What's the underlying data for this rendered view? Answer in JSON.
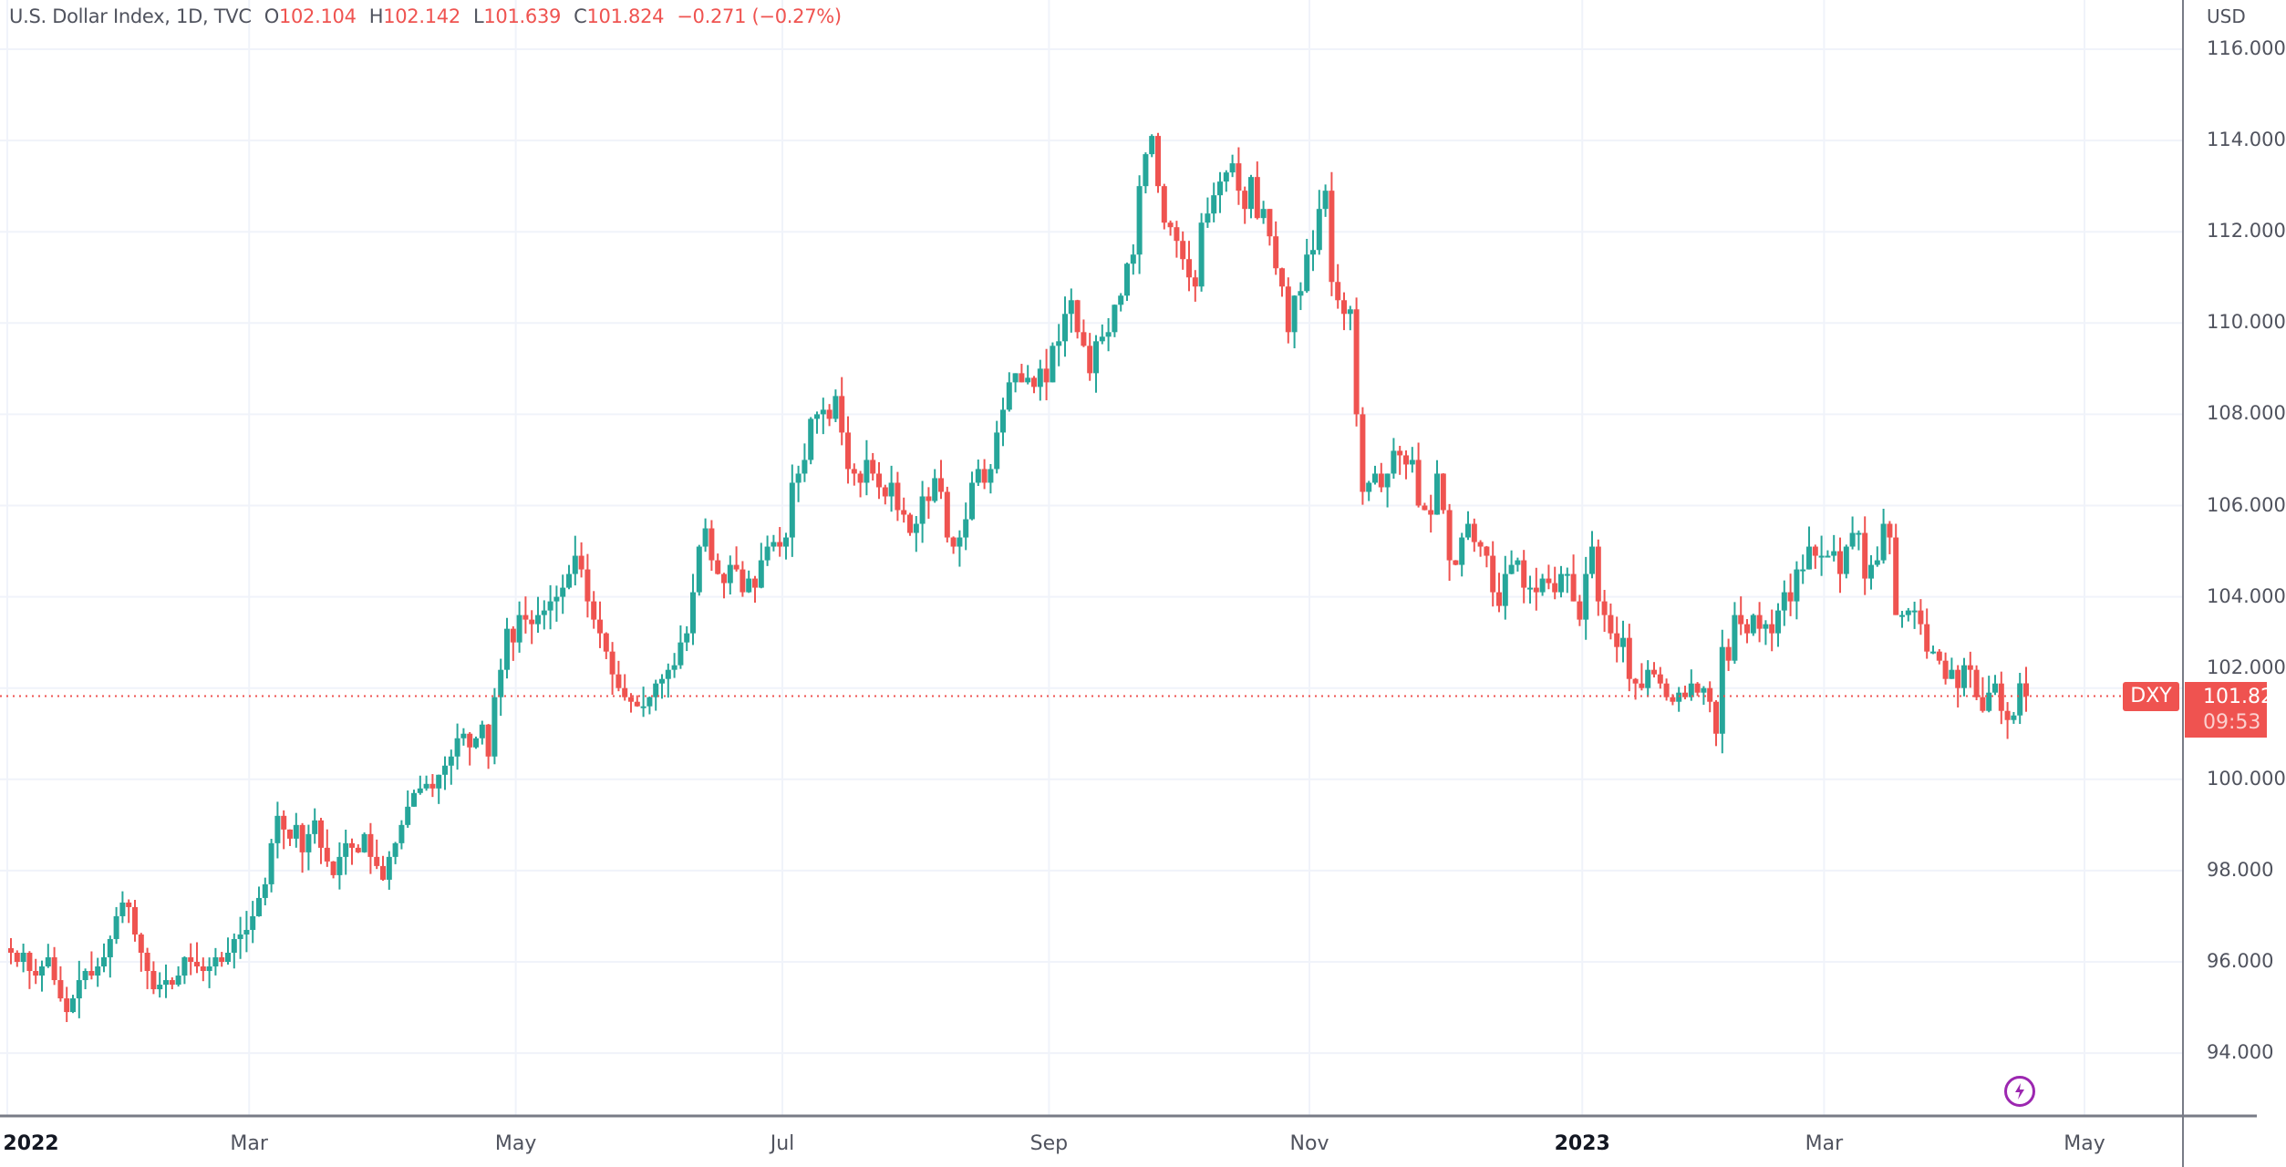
{
  "header": {
    "title": "U.S. Dollar Index, 1D, TVC",
    "o_label": "O",
    "o": "102.104",
    "h_label": "H",
    "h": "102.142",
    "l_label": "L",
    "l": "101.639",
    "c_label": "C",
    "c": "101.824",
    "change": "−0.271 (−0.27%)"
  },
  "price_axis": {
    "unit": "USD",
    "symbol_label": "DXY",
    "last_price": "101.824",
    "countdown": "09:53"
  },
  "colors": {
    "up": "#26a69a",
    "down": "#ef5350",
    "grid": "#f0f3fa",
    "price_line": "#ef5350",
    "event_icon": "#9c27b0"
  },
  "event_icon": "lightning-icon",
  "chart_data": {
    "type": "candlestick",
    "title": "U.S. Dollar Index, 1D, TVC",
    "ylim": [
      93,
      116.5
    ],
    "y_ticks": [
      "94.000",
      "96.000",
      "98.000",
      "100.000",
      "102.000",
      "104.000",
      "106.000",
      "108.000",
      "110.000",
      "112.000",
      "114.000",
      "116.000"
    ],
    "x_ticks": [
      {
        "label": "2022",
        "bold": true,
        "bar": 0
      },
      {
        "label": "Mar",
        "bar": 39
      },
      {
        "label": "May",
        "bar": 82
      },
      {
        "label": "Jul",
        "bar": 125
      },
      {
        "label": "Sep",
        "bar": 168
      },
      {
        "label": "Nov",
        "bar": 210
      },
      {
        "label": "2023",
        "bold": true,
        "bar": 254
      },
      {
        "label": "Mar",
        "bar": 293
      },
      {
        "label": "May",
        "bar": 335
      }
    ],
    "grid": true,
    "last_close": 101.824,
    "last_open": 102.104,
    "closes": [
      96.2,
      96.0,
      96.2,
      95.8,
      95.7,
      95.9,
      96.1,
      95.6,
      95.2,
      94.9,
      95.2,
      95.6,
      95.8,
      95.7,
      95.9,
      96.1,
      96.5,
      97.0,
      97.3,
      97.2,
      96.6,
      96.2,
      95.8,
      95.4,
      95.5,
      95.6,
      95.5,
      95.7,
      96.1,
      96.0,
      95.9,
      95.8,
      95.9,
      96.1,
      96.0,
      96.2,
      96.5,
      96.6,
      96.7,
      97.0,
      97.4,
      97.7,
      98.6,
      99.2,
      98.9,
      98.7,
      99.0,
      98.4,
      98.8,
      99.1,
      98.5,
      98.2,
      97.9,
      98.3,
      98.6,
      98.5,
      98.4,
      98.8,
      98.3,
      98.1,
      97.8,
      98.3,
      98.6,
      99.0,
      99.4,
      99.7,
      99.8,
      99.9,
      99.8,
      100.1,
      100.3,
      100.5,
      100.9,
      101.0,
      100.7,
      100.9,
      101.2,
      100.5,
      101.8,
      102.4,
      103.3,
      103.0,
      103.6,
      103.5,
      103.4,
      103.6,
      103.7,
      103.9,
      104.0,
      104.2,
      104.5,
      104.9,
      104.6,
      103.9,
      103.5,
      103.2,
      102.8,
      102.3,
      102.0,
      101.8,
      101.7,
      101.6,
      101.6,
      101.8,
      102.1,
      102.2,
      102.4,
      102.5,
      103.0,
      103.2,
      104.1,
      105.1,
      105.5,
      104.8,
      104.5,
      104.3,
      104.7,
      104.6,
      104.1,
      104.4,
      104.2,
      104.8,
      105.1,
      105.2,
      105.1,
      105.3,
      106.5,
      106.7,
      107.0,
      107.9,
      108.0,
      108.1,
      107.9,
      108.4,
      107.6,
      106.8,
      106.7,
      106.5,
      107.0,
      106.7,
      106.4,
      106.2,
      106.5,
      105.9,
      105.8,
      105.4,
      105.6,
      106.2,
      106.1,
      106.6,
      106.3,
      105.3,
      105.1,
      105.3,
      105.7,
      106.5,
      106.8,
      106.5,
      106.8,
      107.6,
      108.1,
      108.7,
      108.9,
      108.7,
      108.8,
      108.6,
      109.0,
      108.7,
      109.5,
      109.6,
      110.2,
      110.5,
      109.8,
      109.5,
      108.9,
      109.6,
      109.7,
      109.8,
      110.4,
      110.6,
      111.3,
      111.5,
      113.0,
      113.7,
      114.1,
      113.0,
      112.2,
      112.1,
      111.8,
      111.4,
      111.0,
      110.8,
      112.2,
      112.4,
      112.8,
      113.1,
      113.3,
      113.5,
      112.9,
      112.5,
      113.2,
      112.3,
      112.5,
      111.9,
      111.2,
      110.8,
      109.8,
      110.6,
      110.7,
      111.5,
      111.6,
      112.5,
      112.9,
      110.9,
      110.5,
      110.2,
      110.3,
      108.0,
      106.3,
      106.5,
      106.7,
      106.4,
      106.7,
      107.2,
      107.1,
      106.9,
      107.0,
      106.0,
      105.9,
      105.8,
      106.7,
      105.9,
      104.8,
      104.7,
      105.3,
      105.6,
      105.2,
      105.1,
      104.9,
      104.1,
      103.8,
      104.5,
      104.7,
      104.8,
      104.2,
      104.2,
      104.1,
      104.4,
      104.3,
      104.1,
      104.5,
      104.5,
      103.9,
      103.5,
      104.5,
      105.1,
      103.9,
      103.6,
      103.2,
      102.9,
      103.1,
      102.2,
      102.1,
      102.0,
      102.4,
      102.3,
      102.1,
      101.8,
      101.7,
      101.9,
      101.8,
      102.1,
      101.9,
      102.0,
      101.7,
      101.0,
      102.9,
      102.6,
      103.6,
      103.4,
      103.2,
      103.6,
      103.3,
      103.4,
      103.2,
      103.7,
      104.1,
      103.9,
      104.6,
      104.6,
      105.1,
      104.9,
      104.9,
      104.9,
      105.0,
      104.5,
      105.1,
      105.4,
      105.4,
      104.4,
      104.7,
      104.8,
      105.6,
      105.3,
      103.6,
      103.6,
      103.7,
      103.7,
      103.4,
      102.8,
      102.8,
      102.6,
      102.2,
      102.4,
      102.0,
      102.5,
      102.4,
      101.8,
      101.5,
      101.9,
      102.1,
      101.5,
      101.3,
      101.4,
      102.104,
      101.824
    ]
  }
}
